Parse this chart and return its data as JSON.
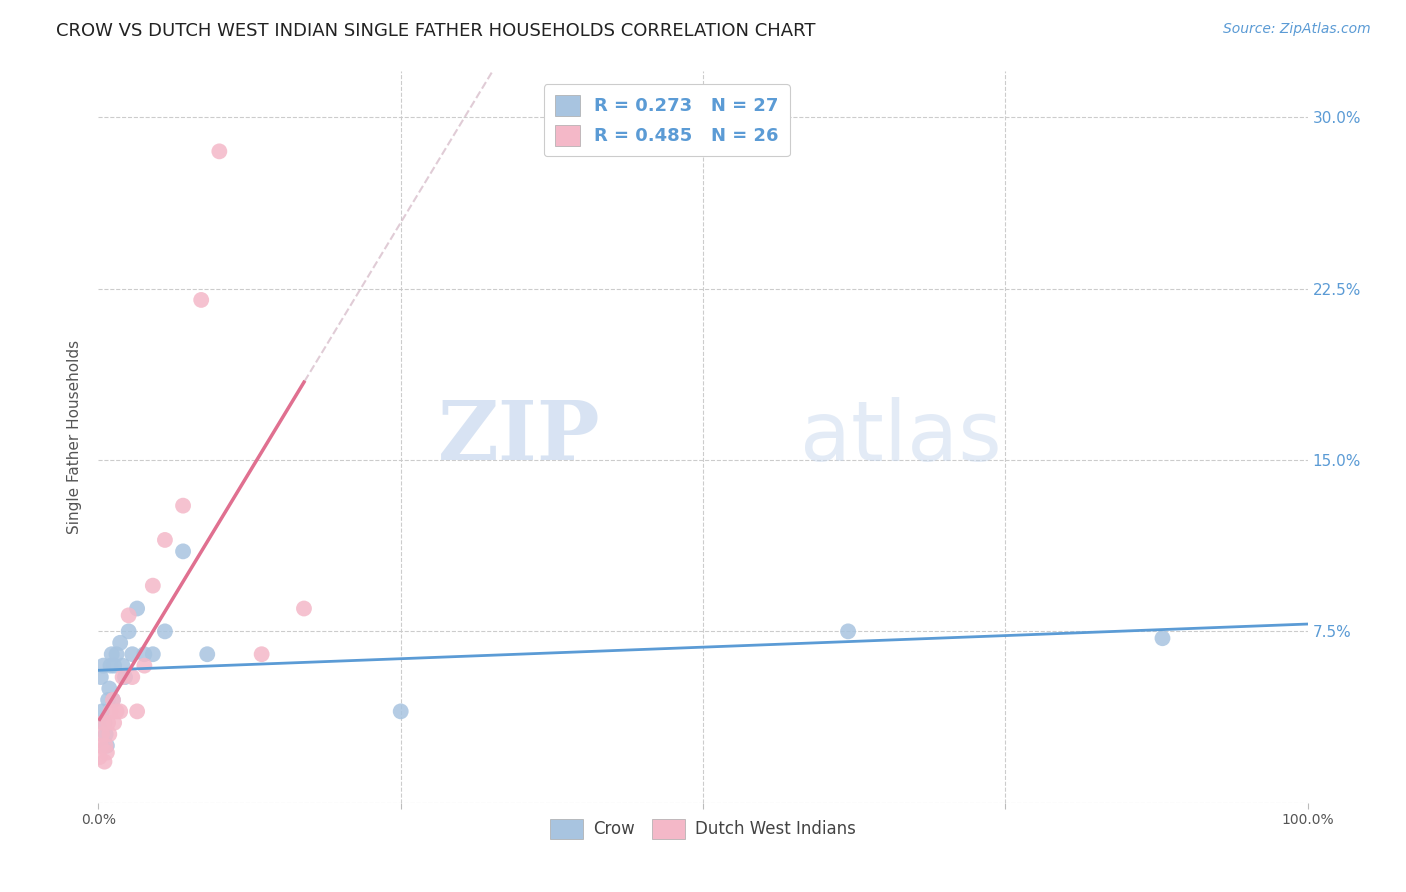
{
  "title": "CROW VS DUTCH WEST INDIAN SINGLE FATHER HOUSEHOLDS CORRELATION CHART",
  "source": "Source: ZipAtlas.com",
  "ylabel": "Single Father Households",
  "xlim": [
    0,
    1.0
  ],
  "ylim": [
    0,
    0.32
  ],
  "xticks": [
    0.0,
    0.25,
    0.5,
    0.75,
    1.0
  ],
  "xticklabels": [
    "0.0%",
    "",
    "",
    "",
    "100.0%"
  ],
  "yticks": [
    0.0,
    0.075,
    0.15,
    0.225,
    0.3
  ],
  "yticklabels": [
    "",
    "7.5%",
    "15.0%",
    "22.5%",
    "30.0%"
  ],
  "crow_R": 0.273,
  "crow_N": 27,
  "dwi_R": 0.485,
  "dwi_N": 26,
  "crow_color": "#a8c4e0",
  "crow_line_color": "#5b9bd5",
  "dwi_color": "#f4b8c8",
  "dwi_line_color": "#e07090",
  "background_color": "#ffffff",
  "watermark_zip": "ZIP",
  "watermark_atlas": "atlas",
  "crow_x": [
    0.002,
    0.003,
    0.004,
    0.005,
    0.006,
    0.007,
    0.008,
    0.009,
    0.01,
    0.011,
    0.012,
    0.013,
    0.015,
    0.018,
    0.02,
    0.022,
    0.025,
    0.028,
    0.032,
    0.038,
    0.045,
    0.055,
    0.07,
    0.09,
    0.25,
    0.62,
    0.88
  ],
  "crow_y": [
    0.055,
    0.04,
    0.06,
    0.035,
    0.03,
    0.025,
    0.045,
    0.05,
    0.06,
    0.065,
    0.045,
    0.06,
    0.065,
    0.07,
    0.06,
    0.055,
    0.075,
    0.065,
    0.085,
    0.065,
    0.065,
    0.075,
    0.11,
    0.065,
    0.04,
    0.075,
    0.072
  ],
  "dwi_x": [
    0.001,
    0.002,
    0.003,
    0.004,
    0.005,
    0.006,
    0.007,
    0.008,
    0.009,
    0.01,
    0.012,
    0.013,
    0.015,
    0.018,
    0.02,
    0.025,
    0.028,
    0.032,
    0.038,
    0.045,
    0.055,
    0.07,
    0.085,
    0.1,
    0.135,
    0.17
  ],
  "dwi_y": [
    0.02,
    0.025,
    0.03,
    0.035,
    0.018,
    0.025,
    0.022,
    0.035,
    0.03,
    0.04,
    0.045,
    0.035,
    0.04,
    0.04,
    0.055,
    0.082,
    0.055,
    0.04,
    0.06,
    0.095,
    0.115,
    0.13,
    0.22,
    0.285,
    0.065,
    0.085
  ],
  "legend_text_color": "#333333",
  "legend_num_color": "#5b9bd5"
}
